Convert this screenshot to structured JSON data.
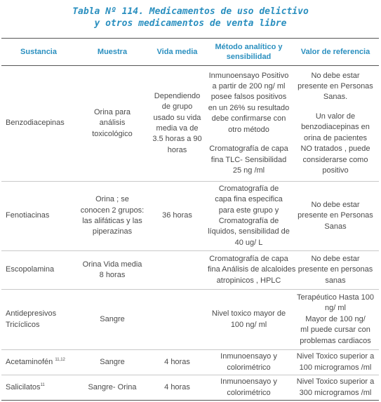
{
  "caption": {
    "line1": "Tabla Nº 114. Medicamentos de uso delictivo",
    "line2": "y otros medicamentos de venta libre"
  },
  "headers": {
    "sustancia": "Sustancia",
    "muestra": "Muestra",
    "vida_media": "Vida media",
    "metodo": [
      "Método analítico y",
      "sensibilidad"
    ],
    "valor": "Valor de referencia"
  },
  "rows": [
    {
      "sustancia": "Benzodiacepinas",
      "muestra": [
        "Orina para",
        "análisis",
        "toxicológico"
      ],
      "vida": [
        "Dependiendo",
        "de grupo",
        "usado su vida",
        "media va de",
        "3.5 horas a 90",
        "horas"
      ],
      "metodo_a": [
        "Inmunoensayo Positivo",
        "a partir de 200 ng/ ml",
        "posee falsos positivos",
        "en un 26% su resultado",
        "debe confirmarse con",
        "otro método"
      ],
      "metodo_b": [
        "Cromatografía de capa",
        "fina TLC- Sensibilidad",
        "25 ng /ml"
      ],
      "valor_a": [
        "No debe estar",
        "presente en Personas",
        "Sanas."
      ],
      "valor_b": [
        "Un valor de",
        "benzodiacepinas en",
        "orina de pacientes",
        "NO tratados , puede",
        "considerarse como",
        "positivo"
      ]
    },
    {
      "sustancia": "Fenotiacinas",
      "muestra": [
        "Orina ; se",
        "conocen 2 grupos:",
        "las alifáticas y las",
        "piperazinas"
      ],
      "vida": [
        "36 horas"
      ],
      "metodo": [
        "Cromatografía de",
        "capa fina especifica",
        "para este grupo y",
        "Cromatografía de",
        "líquidos, sensibilidad de",
        "40 ug/ L"
      ],
      "valor": [
        "No debe estar",
        "presente en Personas",
        "Sanas"
      ]
    },
    {
      "sustancia": "Escopolamina",
      "muestra": [
        "Orina Vida media",
        "8 horas"
      ],
      "vida": [],
      "metodo": [
        "Cromatografía de capa",
        "fina Análisis de alcaloides",
        "atropinicos , HPLC"
      ],
      "valor": [
        "No debe estar",
        "presente en personas",
        "sanas"
      ]
    },
    {
      "sustancia": [
        "Antidepresivos",
        "Tricíclicos"
      ],
      "muestra": [
        "Sangre"
      ],
      "vida": [],
      "metodo": [
        "Nivel toxico mayor de",
        "100 ng/ ml"
      ],
      "valor": [
        "Terapéutico Hasta 100",
        "ng/ ml",
        "Mayor de 100 ng/",
        "ml puede cursar con",
        "problemas cardiacos"
      ]
    },
    {
      "sustancia": "Acetaminofén",
      "sustancia_sup": "11,12",
      "muestra": [
        "Sangre"
      ],
      "vida": [
        "4 horas"
      ],
      "metodo": [
        "Inmunoensayo y",
        "colorimétrico"
      ],
      "valor": [
        "Nivel Toxico superior a",
        "100 microgramos /ml"
      ]
    },
    {
      "sustancia": "Salicilatos",
      "sustancia_sup": "11",
      "muestra": [
        "Sangre- Orina"
      ],
      "vida": [
        "4 horas"
      ],
      "metodo": [
        "Inmunoensayo y",
        "colorimétrico"
      ],
      "valor": [
        "Nivel Toxico superior a",
        "300 microgramos /ml"
      ]
    }
  ]
}
